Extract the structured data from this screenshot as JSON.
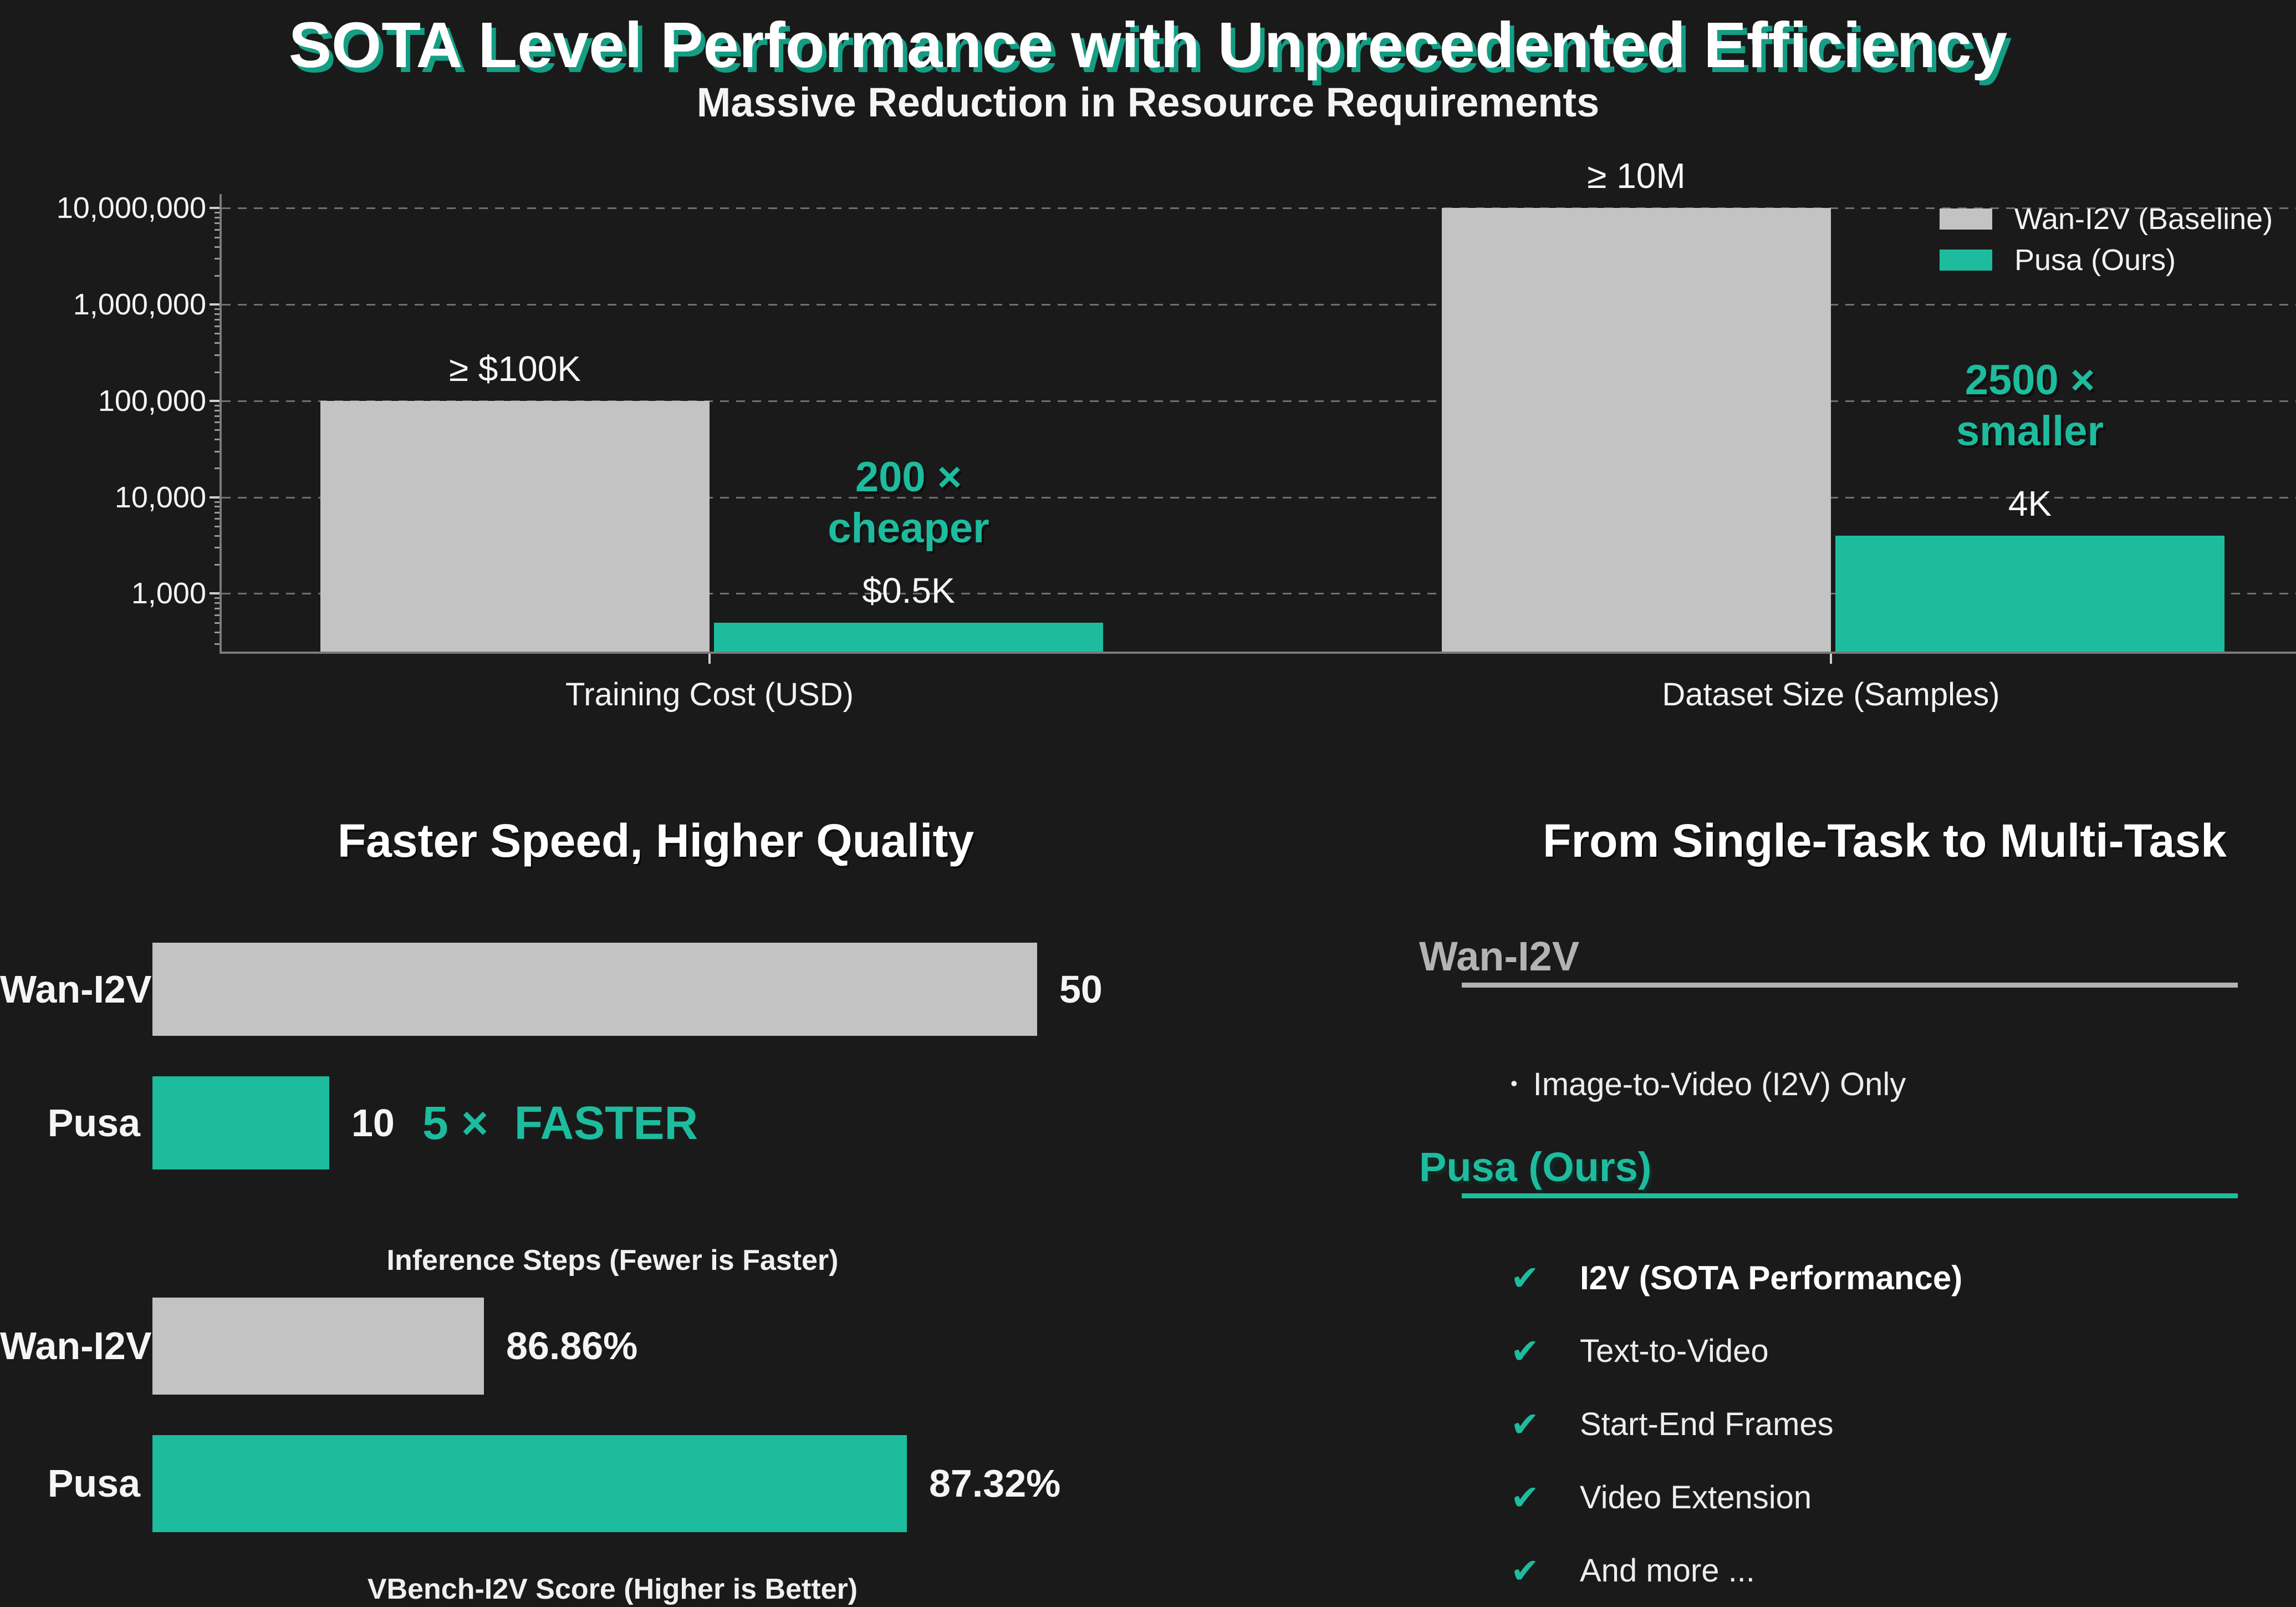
{
  "page": {
    "title": "SOTA Level Performance with Unprecedented Efficiency",
    "subtitle": "Massive Reduction in Resource Requirements"
  },
  "colors": {
    "background": "#1a1a1a",
    "baseline_gray": "#c3c3c3",
    "accent_teal": "#1dbc9e",
    "title_shadow_teal": "#149e84",
    "gridline_gray": "#6f6f6f",
    "heading_gray": "#b3b3b3"
  },
  "chart_data": [
    {
      "id": "resource_reduction",
      "type": "bar",
      "scale": "log",
      "grid": true,
      "legend_position": "upper right",
      "legend": [
        "Wan-I2V (Baseline)",
        "Pusa (Ours)"
      ],
      "ylim": [
        250,
        14000000
      ],
      "yticks": [
        1000,
        10000,
        100000,
        1000000,
        10000000
      ],
      "ytick_labels": [
        "1,000",
        "10,000",
        "100,000",
        "1,000,000",
        "10,000,000"
      ],
      "groups": [
        {
          "category": "Training Cost (USD)",
          "baseline": {
            "series": "Wan-I2V (Baseline)",
            "value": 100000,
            "annotation": "≥ $100K"
          },
          "ours": {
            "series": "Pusa (Ours)",
            "value": 500,
            "annotation": "$0.5K"
          },
          "ratio_note": [
            "200 ×",
            "cheaper"
          ]
        },
        {
          "category": "Dataset Size (Samples)",
          "baseline": {
            "series": "Wan-I2V (Baseline)",
            "value": 10000000,
            "annotation": "≥ 10M"
          },
          "ours": {
            "series": "Pusa (Ours)",
            "value": 4000,
            "annotation": "4K"
          },
          "ratio_note": [
            "2500 ×",
            "smaller"
          ]
        }
      ]
    },
    {
      "id": "inference_steps",
      "type": "hbar",
      "xlabel": "Inference Steps (Fewer is Faster)",
      "xlim": [
        0,
        52
      ],
      "rows": [
        {
          "label": "Wan-I2V",
          "value": 50,
          "display": "50",
          "color": "gray"
        },
        {
          "label": "Pusa",
          "value": 10,
          "display": "10",
          "color": "teal",
          "note": "5 ×  FASTER"
        }
      ]
    },
    {
      "id": "vbench_score",
      "type": "hbar",
      "xlabel": "VBench-I2V Score (Higher is Better)",
      "xlim": [
        86.5,
        87.5
      ],
      "rows": [
        {
          "label": "Wan-I2V",
          "value": 86.86,
          "display": "86.86%",
          "color": "gray"
        },
        {
          "label": "Pusa",
          "value": 87.32,
          "display": "87.32%",
          "color": "teal"
        }
      ]
    }
  ],
  "left_section": {
    "title": "Faster Speed, Higher Quality"
  },
  "right_section": {
    "title": "From Single-Task to Multi-Task",
    "wan": {
      "heading": "Wan-I2V",
      "bullet_glyph": "•",
      "bullet": "Image-to-Video (I2V) Only"
    },
    "pusa": {
      "heading": "Pusa (Ours)",
      "check_glyph": "✔",
      "items": [
        {
          "text": "I2V (SOTA Performance)",
          "bold": true
        },
        {
          "text": "Text-to-Video",
          "bold": false
        },
        {
          "text": "Start-End Frames",
          "bold": false
        },
        {
          "text": "Video Extension",
          "bold": false
        },
        {
          "text": "And more ...",
          "bold": false
        }
      ]
    }
  }
}
